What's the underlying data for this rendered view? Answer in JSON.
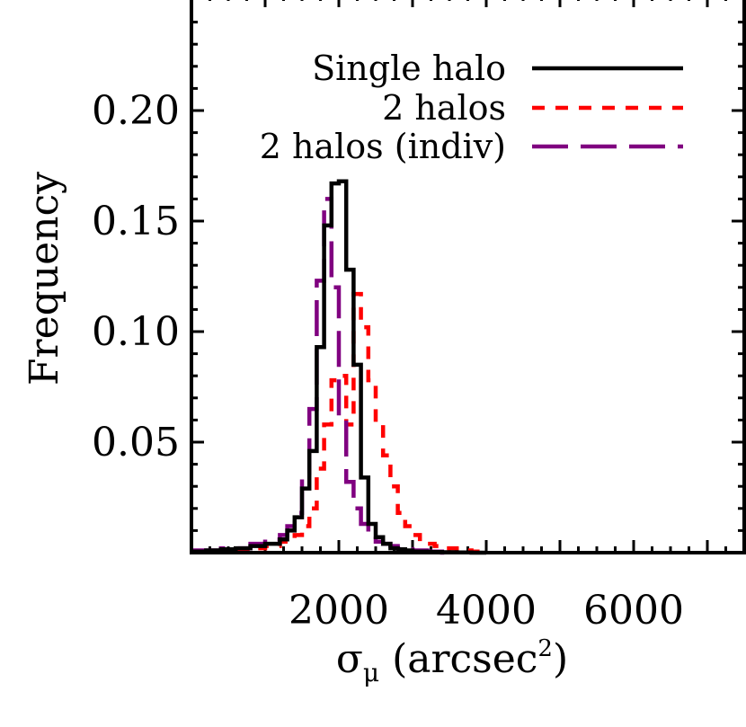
{
  "chart_data": {
    "type": "line",
    "xlabel": "σ",
    "xlabel_sub": "μ",
    "xlabel_unit": " (arcsec",
    "xlabel_sup": "2",
    "xlabel_close": ")",
    "ylabel": "Frequency",
    "xlim": [
      0,
      7500
    ],
    "ylim": [
      0,
      0.25
    ],
    "x_ticks": [
      {
        "value": 2000,
        "label": "2000"
      },
      {
        "value": 4000,
        "label": "4000"
      },
      {
        "value": 6000,
        "label": "6000"
      }
    ],
    "y_ticks": [
      {
        "value": 0.05,
        "label": "0.05"
      },
      {
        "value": 0.1,
        "label": "0.10"
      },
      {
        "value": 0.15,
        "label": "0.15"
      },
      {
        "value": 0.2,
        "label": "0.20"
      }
    ],
    "legend_position": "top-right",
    "series": [
      {
        "name": "Single halo",
        "color": "#000000",
        "style": "solid",
        "bin_edges": [
          0,
          200,
          400,
          600,
          800,
          1000,
          1200,
          1300,
          1400,
          1500,
          1600,
          1700,
          1800,
          1900,
          2000,
          2100,
          2200,
          2300,
          2400,
          2500,
          2600,
          2700,
          2800,
          2900,
          3000,
          3200,
          3400,
          3600,
          3800,
          4000
        ],
        "values": [
          0.0005,
          0.001,
          0.0015,
          0.002,
          0.003,
          0.004,
          0.006,
          0.01,
          0.016,
          0.029,
          0.046,
          0.093,
          0.148,
          0.167,
          0.168,
          0.128,
          0.085,
          0.034,
          0.013,
          0.007,
          0.004,
          0.002,
          0.0015,
          0.001,
          0.0005,
          0.0003,
          0.0002,
          0.0001,
          0.0
        ]
      },
      {
        "name": "2 halos",
        "color": "#ff0000",
        "style": "short-dash",
        "bin_edges": [
          0,
          400,
          800,
          1000,
          1200,
          1400,
          1500,
          1600,
          1700,
          1800,
          1900,
          2000,
          2100,
          2200,
          2300,
          2400,
          2500,
          2600,
          2700,
          2800,
          2900,
          3000,
          3100,
          3200,
          3300,
          3400,
          3600,
          3800,
          4000
        ],
        "values": [
          0.0005,
          0.001,
          0.002,
          0.003,
          0.005,
          0.008,
          0.012,
          0.02,
          0.038,
          0.058,
          0.078,
          0.08,
          0.058,
          0.117,
          0.102,
          0.078,
          0.058,
          0.044,
          0.03,
          0.018,
          0.012,
          0.008,
          0.005,
          0.004,
          0.003,
          0.002,
          0.001,
          0.0005
        ]
      },
      {
        "name": "2 halos (indiv)",
        "color": "#800080",
        "style": "long-dash",
        "bin_edges": [
          0,
          400,
          800,
          1000,
          1200,
          1300,
          1400,
          1500,
          1600,
          1700,
          1800,
          1900,
          2000,
          2100,
          2200,
          2300,
          2400,
          2500,
          2600,
          2700,
          2800,
          2900,
          3000,
          3200,
          3400,
          3600
        ],
        "values": [
          0.001,
          0.002,
          0.004,
          0.006,
          0.008,
          0.012,
          0.018,
          0.036,
          0.065,
          0.123,
          0.16,
          0.12,
          0.06,
          0.032,
          0.02,
          0.013,
          0.008,
          0.005,
          0.004,
          0.003,
          0.002,
          0.0015,
          0.001,
          0.0005,
          0.0
        ]
      }
    ]
  }
}
